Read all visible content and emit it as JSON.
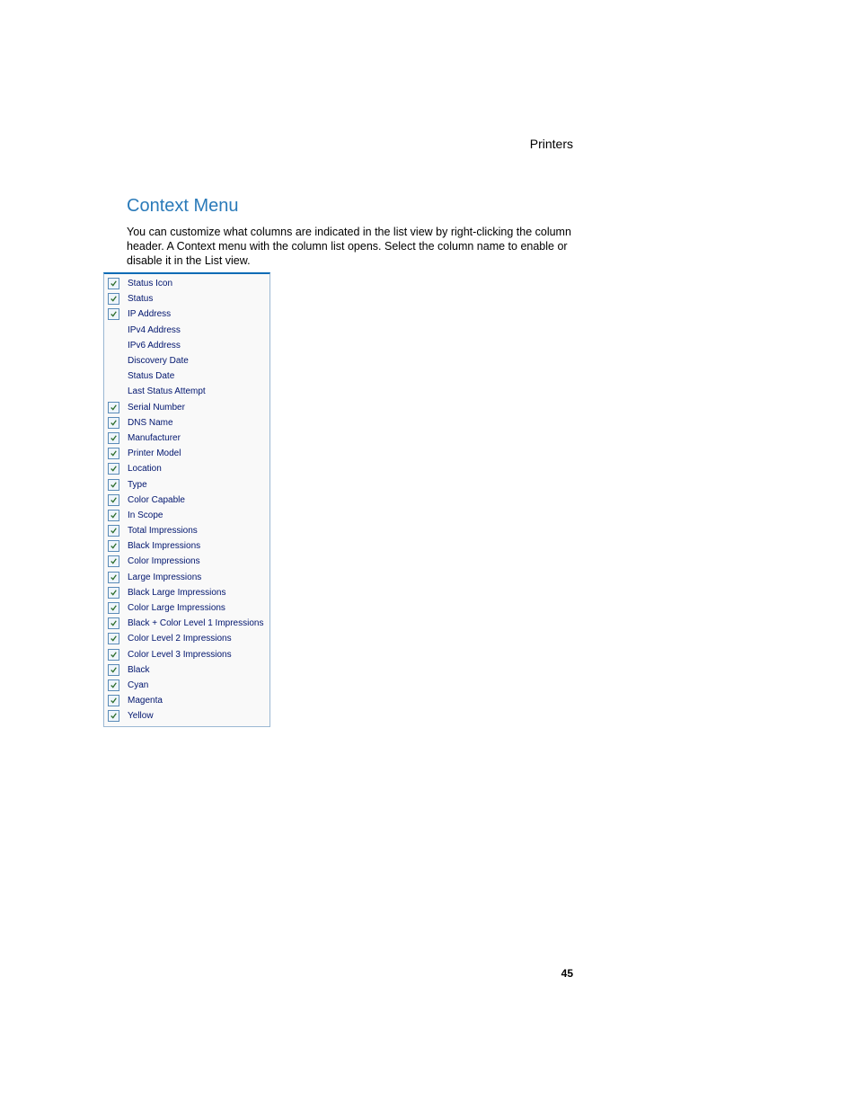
{
  "header": {
    "section": "Printers"
  },
  "heading": "Context Menu",
  "body": "You can customize what columns are indicated in the list view by right-clicking the column header. A Context menu with the column list opens. Select the column name to enable or disable it in the List view.",
  "page_number": "45",
  "colors": {
    "heading": "#2a7ab9",
    "menu_border": "#9bb8d3",
    "menu_top_border": "#0a6bb5",
    "menu_bg": "#f9f9f9",
    "label_text": "#00156e",
    "check_border": "#5a8bb8",
    "check_bg": "#eef5fb",
    "check_mark": "#2a6b2a"
  },
  "menu": {
    "items": [
      {
        "label": "Status Icon",
        "checked": true
      },
      {
        "label": "Status",
        "checked": true
      },
      {
        "label": "IP Address",
        "checked": true
      },
      {
        "label": "IPv4 Address",
        "checked": false
      },
      {
        "label": "IPv6 Address",
        "checked": false
      },
      {
        "label": "Discovery Date",
        "checked": false
      },
      {
        "label": "Status Date",
        "checked": false
      },
      {
        "label": "Last Status Attempt",
        "checked": false
      },
      {
        "label": "Serial Number",
        "checked": true
      },
      {
        "label": "DNS Name",
        "checked": true
      },
      {
        "label": "Manufacturer",
        "checked": true
      },
      {
        "label": "Printer Model",
        "checked": true
      },
      {
        "label": "Location",
        "checked": true
      },
      {
        "label": "Type",
        "checked": true
      },
      {
        "label": "Color Capable",
        "checked": true
      },
      {
        "label": "In Scope",
        "checked": true
      },
      {
        "label": "Total Impressions",
        "checked": true
      },
      {
        "label": "Black Impressions",
        "checked": true
      },
      {
        "label": "Color Impressions",
        "checked": true
      },
      {
        "label": "Large Impressions",
        "checked": true
      },
      {
        "label": "Black Large Impressions",
        "checked": true
      },
      {
        "label": "Color Large Impressions",
        "checked": true
      },
      {
        "label": "Black + Color Level 1 Impressions",
        "checked": true
      },
      {
        "label": "Color Level 2 Impressions",
        "checked": true
      },
      {
        "label": "Color Level 3 Impressions",
        "checked": true
      },
      {
        "label": "Black",
        "checked": true
      },
      {
        "label": "Cyan",
        "checked": true
      },
      {
        "label": "Magenta",
        "checked": true
      },
      {
        "label": "Yellow",
        "checked": true
      }
    ]
  }
}
